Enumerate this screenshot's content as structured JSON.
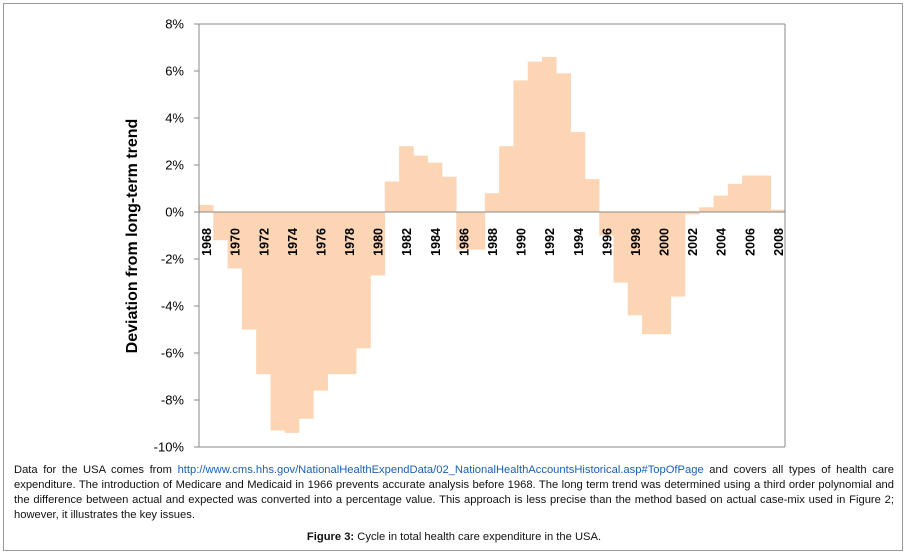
{
  "chart_data": {
    "type": "bar",
    "title": "",
    "xlabel": "",
    "ylabel": "Deviation from long-term trend",
    "ylim": [
      -10,
      8
    ],
    "y_ticks": [
      "8%",
      "6%",
      "4%",
      "2%",
      "0%",
      "-2%",
      "-4%",
      "-6%",
      "-8%",
      "-10%"
    ],
    "y_tick_values": [
      8,
      6,
      4,
      2,
      0,
      -2,
      -4,
      -6,
      -8,
      -10
    ],
    "x_tick_labels": [
      "1968",
      "1970",
      "1972",
      "1974",
      "1976",
      "1978",
      "1980",
      "1982",
      "1984",
      "1986",
      "1988",
      "1990",
      "1992",
      "1994",
      "1996",
      "1998",
      "2000",
      "2002",
      "2004",
      "2006",
      "2008"
    ],
    "categories": [
      "1968",
      "1969",
      "1970",
      "1971",
      "1972",
      "1973",
      "1974",
      "1975",
      "1976",
      "1977",
      "1978",
      "1979",
      "1980",
      "1981",
      "1982",
      "1983",
      "1984",
      "1985",
      "1986",
      "1987",
      "1988",
      "1989",
      "1990",
      "1991",
      "1992",
      "1993",
      "1994",
      "1995",
      "1996",
      "1997",
      "1998",
      "1999",
      "2000",
      "2001",
      "2002",
      "2003",
      "2004",
      "2005",
      "2006",
      "2007",
      "2008"
    ],
    "values": [
      0.3,
      -1.2,
      -2.4,
      -5.0,
      -6.9,
      -9.3,
      -9.4,
      -8.8,
      -7.6,
      -6.9,
      -6.9,
      -5.8,
      -2.7,
      1.3,
      2.8,
      2.4,
      2.1,
      1.5,
      -1.6,
      -1.6,
      0.8,
      2.8,
      5.6,
      6.4,
      6.6,
      5.9,
      3.4,
      1.4,
      -1.0,
      -3.0,
      -4.4,
      -5.2,
      -5.2,
      -3.6,
      -0.1,
      0.2,
      0.7,
      1.2,
      1.55,
      1.55,
      0.1
    ],
    "bar_color": "#fcd5b4",
    "grid": false
  },
  "caption": {
    "text_before": "Data for the USA comes from ",
    "link": "http://www.cms.hhs.gov/NationalHealthExpendData/02_NationalHealthAccountsHistorical.asp#TopOfPage",
    "text_after": " and covers all types of health care expenditure. The introduction of Medicare and Medicaid in 1966 prevents accurate analysis before 1968. The long term trend was determined using a third order polynomial and the difference between actual and expected was converted into a percentage value. This approach is less precise than the method based on actual case-mix used in Figure 2; however, it illustrates the key issues."
  },
  "figure": {
    "label": "Figure 3:",
    "text": " Cycle in total health care expenditure in the USA."
  }
}
